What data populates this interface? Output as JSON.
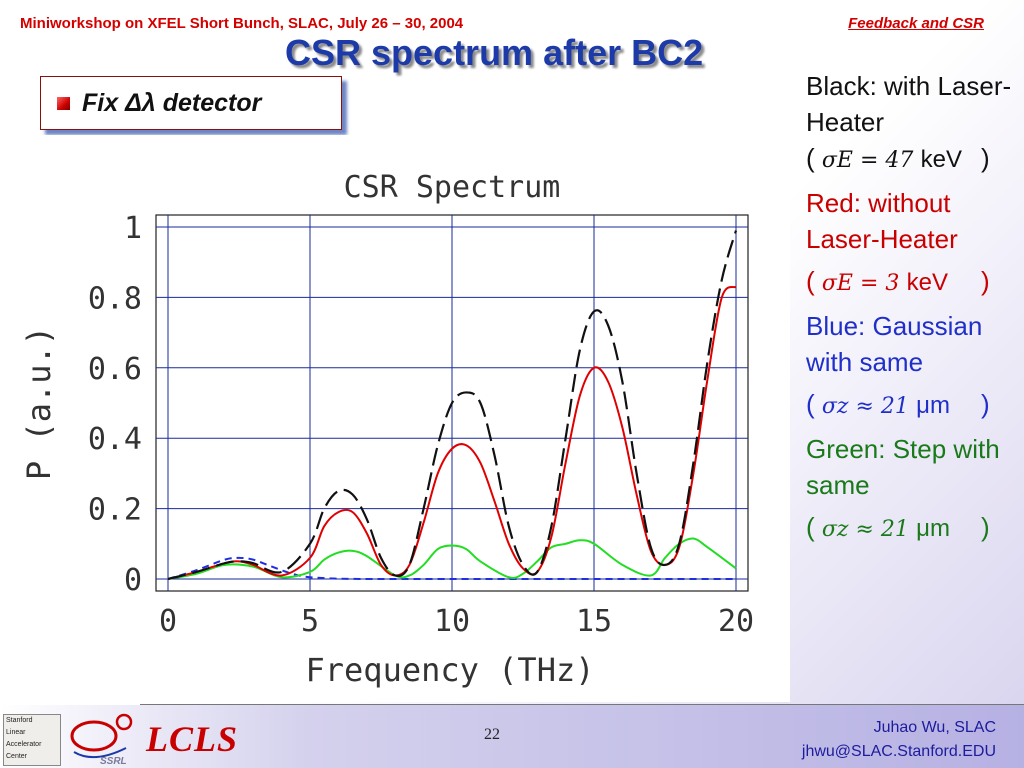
{
  "header": {
    "conference": "Miniworkshop on XFEL Short Bunch, SLAC, July 26 – 30, 2004",
    "section": "Feedback and CSR"
  },
  "slide": {
    "title": "CSR spectrum after BC2",
    "fix_label": "Fix Δλ detector"
  },
  "legend": {
    "black_label": "Black: with Laser-Heater",
    "black_formula": "σE = 47",
    "black_unit": "keV",
    "red_label": "Red: without Laser-Heater",
    "red_formula": "σE = 3",
    "red_unit": "keV",
    "blue_label": "Blue: Gaussian with same",
    "blue_formula": "σz ≈ 21",
    "blue_unit": "μm",
    "green_label": "Green: Step with same",
    "green_formula": "σz ≈ 21",
    "green_unit": "μm",
    "open_paren": "(",
    "close_paren": ")"
  },
  "footer": {
    "page_number": "22",
    "author": "Juhao Wu, SLAC",
    "email": "jhwu@SLAC.Stanford.EDU",
    "lcls": "LCLS",
    "slac_logo_lines": [
      "Stanford",
      "Linear",
      "Accelerator",
      "Center"
    ],
    "ssrl": "SSRL"
  },
  "colors": {
    "title_blue": "#1c3aa8",
    "header_red": "#d40000",
    "black_series": "#111111",
    "red_series": "#e00000",
    "blue_series": "#1f2fe0",
    "green_series": "#22dd22",
    "grid": "#1a2a9a"
  },
  "chart_data": {
    "type": "line",
    "title": "CSR Spectrum",
    "xlabel": "Frequency (THz)",
    "ylabel": "P (a.u.)",
    "xlim": [
      0,
      20
    ],
    "ylim": [
      0,
      1
    ],
    "xticks": [
      "0",
      "5",
      "10",
      "15",
      "20"
    ],
    "yticks": [
      "0",
      "0.2",
      "0.4",
      "0.6",
      "0.8",
      "1"
    ],
    "grid": true,
    "series": [
      {
        "color": "black",
        "style": "dashed",
        "x": [
          0,
          1,
          2,
          2.5,
          3,
          4,
          5,
          5.5,
          6,
          6.5,
          7,
          7.5,
          8,
          8.5,
          9,
          9.5,
          10,
          10.5,
          11,
          11.5,
          12,
          12.5,
          13,
          13.5,
          14,
          14.5,
          15,
          15.5,
          16,
          16.5,
          17,
          17.5,
          18,
          18.5,
          19,
          19.5,
          20
        ],
        "y": [
          0,
          0.02,
          0.045,
          0.05,
          0.045,
          0.02,
          0.1,
          0.2,
          0.25,
          0.24,
          0.17,
          0.06,
          0.01,
          0.04,
          0.2,
          0.38,
          0.5,
          0.53,
          0.5,
          0.35,
          0.15,
          0.04,
          0.02,
          0.15,
          0.4,
          0.65,
          0.76,
          0.72,
          0.56,
          0.3,
          0.09,
          0.04,
          0.1,
          0.33,
          0.62,
          0.85,
          0.99
        ]
      },
      {
        "color": "red",
        "style": "solid",
        "x": [
          0,
          1,
          2,
          2.5,
          3,
          4,
          5,
          5.5,
          6,
          6.5,
          7,
          7.5,
          8,
          8.5,
          9,
          9.5,
          10,
          10.5,
          11,
          11.5,
          12,
          12.5,
          13,
          13.5,
          14,
          14.5,
          15,
          15.5,
          16,
          16.5,
          17,
          17.5,
          18,
          18.5,
          19,
          19.5,
          20
        ],
        "y": [
          0,
          0.02,
          0.045,
          0.05,
          0.04,
          0.01,
          0.06,
          0.15,
          0.19,
          0.19,
          0.13,
          0.04,
          0.01,
          0.04,
          0.16,
          0.3,
          0.37,
          0.38,
          0.33,
          0.22,
          0.1,
          0.03,
          0.02,
          0.12,
          0.33,
          0.52,
          0.6,
          0.56,
          0.43,
          0.24,
          0.08,
          0.04,
          0.09,
          0.3,
          0.57,
          0.8,
          0.83
        ]
      },
      {
        "color": "blue",
        "style": "dashed",
        "x": [
          0,
          1,
          2,
          2.5,
          3,
          3.5,
          4,
          4.5,
          5,
          6,
          7,
          8,
          10,
          12,
          14,
          16,
          18,
          20
        ],
        "y": [
          0,
          0.025,
          0.055,
          0.06,
          0.055,
          0.04,
          0.025,
          0.012,
          0.005,
          0.001,
          0,
          0,
          0,
          0,
          0,
          0,
          0,
          0
        ]
      },
      {
        "color": "green",
        "style": "solid",
        "x": [
          0,
          1,
          2,
          3,
          4,
          5,
          5.5,
          6,
          6.5,
          7,
          8,
          8.5,
          9,
          9.5,
          10,
          10.5,
          11,
          12,
          12.5,
          13,
          13.5,
          14,
          14.5,
          15,
          16,
          17,
          17.5,
          18,
          18.5,
          19,
          20
        ],
        "y": [
          0,
          0.015,
          0.04,
          0.035,
          0.005,
          0.02,
          0.055,
          0.075,
          0.08,
          0.065,
          0.01,
          0.01,
          0.04,
          0.085,
          0.095,
          0.085,
          0.05,
          0.005,
          0.015,
          0.05,
          0.09,
          0.1,
          0.11,
          0.1,
          0.04,
          0.01,
          0.06,
          0.1,
          0.115,
          0.09,
          0.03
        ]
      }
    ]
  }
}
